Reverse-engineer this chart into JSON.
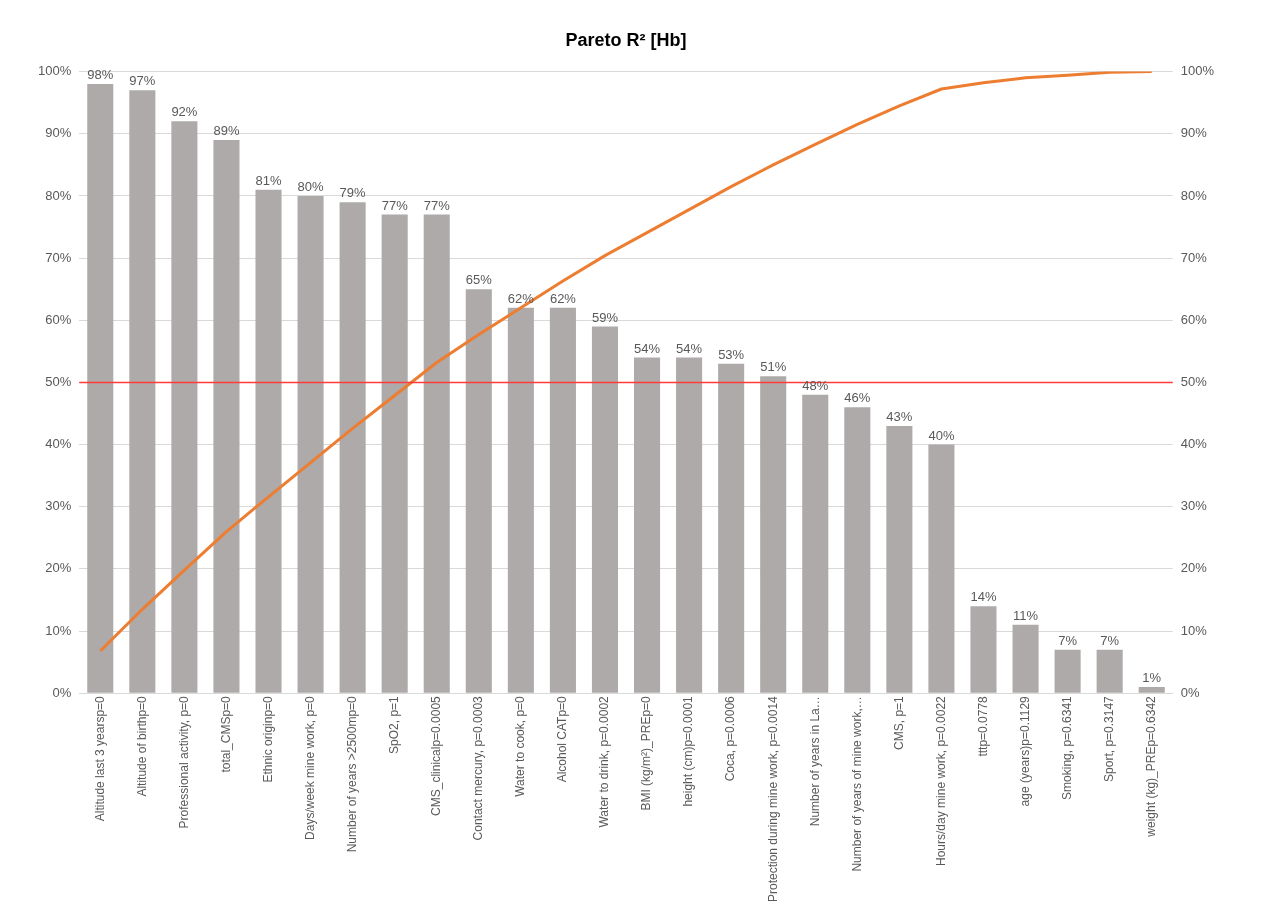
{
  "chart_data": {
    "type": "bar",
    "title": "Pareto R² [Hb]",
    "categories": [
      "Altitude last 3 yearsp=0",
      "Altitude of birthp=0",
      "Professional activity, p=0",
      "total_CMSp=0",
      "Ethnic originp=0",
      "Days/week mine work, p=0",
      "Number of years >2500mp=0",
      "SpO2, p=1",
      "CMS_clinicalp=0.0005",
      "Contact mercury, p=0.0003",
      "Water to cook, p=0",
      "Alcohol CATp=0",
      "Water to drink, p=0.0002",
      "BMI (kg/m²)_PREp=0",
      "height (cm)p=0.0001",
      "Coca, p=0.0006",
      "Protection during mine work, p=0.0014",
      "Number of years in La…",
      "Number of years of mine work,…",
      "CMS, p=1",
      "Hours/day mine work, p=0.0022",
      "tttp=0.0778",
      "age (years)p=0.1129",
      "Smoking, p=0.6341",
      "Sport, p=0.3147",
      "weight (kg)_PREp=0.6342"
    ],
    "series": [
      {
        "color": "#aeaaaa",
        "values": [
          98,
          97,
          92,
          89,
          81,
          80,
          79,
          77,
          77,
          65,
          62,
          62,
          59,
          54,
          54,
          53,
          51,
          48,
          46,
          43,
          40,
          14,
          11,
          7,
          7,
          1
        ],
        "value_labels": [
          "98%",
          "97%",
          "92%",
          "89%",
          "81%",
          "80%",
          "79%",
          "77%",
          "77%",
          "65%",
          "62%",
          "62%",
          "59%",
          "54%",
          "54%",
          "53%",
          "51%",
          "48%",
          "46%",
          "43%",
          "40%",
          "14%",
          "11%",
          "7%",
          "7%",
          "1%"
        ]
      },
      {
        "type": "line",
        "color": "#ed7d31",
        "axis": "y2",
        "values": [
          6.8,
          13.5,
          19.8,
          26.0,
          31.6,
          37.1,
          42.6,
          47.9,
          53.2,
          57.7,
          62.0,
          66.3,
          70.4,
          74.1,
          77.8,
          81.5,
          85.0,
          88.3,
          91.5,
          94.5,
          97.2,
          98.2,
          99.0,
          99.4,
          99.9,
          100
        ]
      }
    ],
    "ylim": [
      0,
      100
    ],
    "yticks": [
      {
        "value": 0,
        "label": "0%"
      },
      {
        "value": 10,
        "label": "10%"
      },
      {
        "value": 20,
        "label": "20%"
      },
      {
        "value": 30,
        "label": "30%"
      },
      {
        "value": 40,
        "label": "40%"
      },
      {
        "value": 50,
        "label": "50%"
      },
      {
        "value": 60,
        "label": "60%"
      },
      {
        "value": 70,
        "label": "70%"
      },
      {
        "value": 80,
        "label": "80%"
      },
      {
        "value": 90,
        "label": "90%"
      },
      {
        "value": 100,
        "label": "100%"
      }
    ],
    "y2lim": [
      0,
      100
    ],
    "y2ticks": [
      {
        "value": 0,
        "label": "0%"
      },
      {
        "value": 10,
        "label": "10%"
      },
      {
        "value": 20,
        "label": "20%"
      },
      {
        "value": 30,
        "label": "30%"
      },
      {
        "value": 40,
        "label": "40%"
      },
      {
        "value": 50,
        "label": "50%"
      },
      {
        "value": 60,
        "label": "60%"
      },
      {
        "value": 70,
        "label": "70%"
      },
      {
        "value": 80,
        "label": "80%"
      },
      {
        "value": 90,
        "label": "90%"
      },
      {
        "value": 100,
        "label": "100%"
      }
    ],
    "ref_lines": [
      {
        "axis": "y",
        "value": 50,
        "color": "#ff3b3b"
      }
    ],
    "grid": "y",
    "legend": false,
    "marker": "none"
  }
}
